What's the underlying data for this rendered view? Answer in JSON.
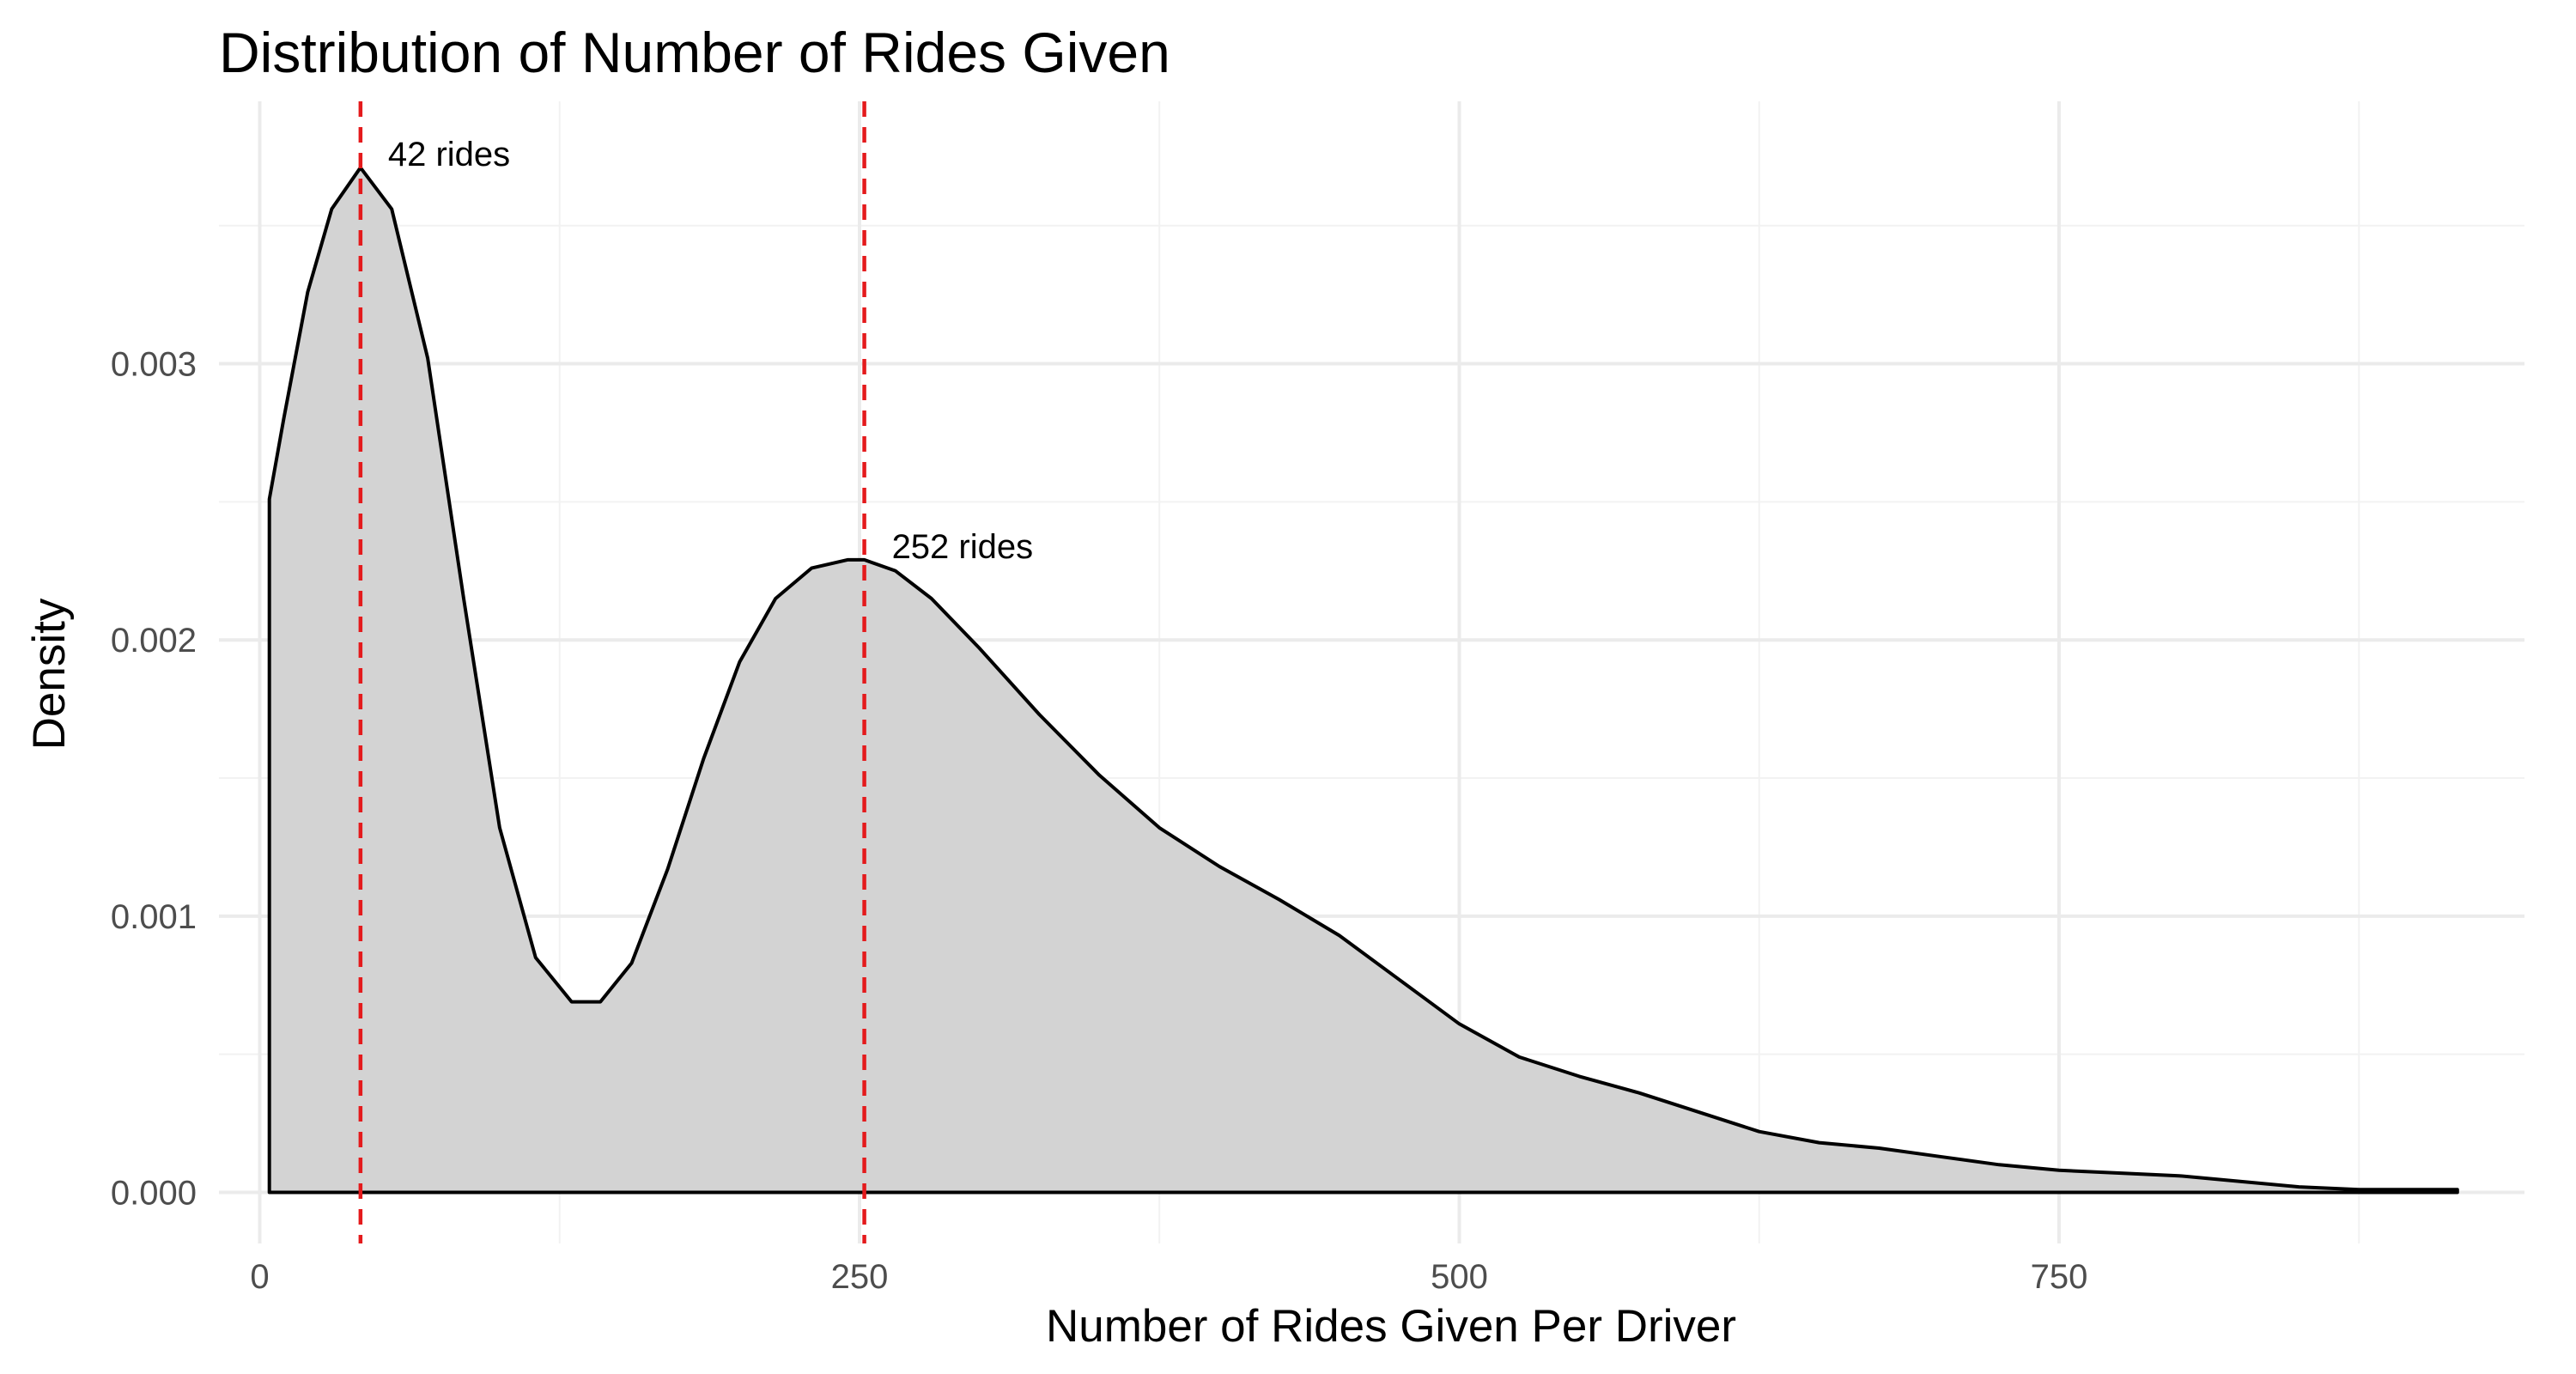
{
  "chart_data": {
    "type": "area",
    "title": "Distribution of Number of Rides Given",
    "xlabel": "Number of Rides Given Per Driver",
    "ylabel": "Density",
    "xlim": [
      -17,
      944
    ],
    "ylim": [
      -0.000185,
      0.00395
    ],
    "x_ticks": [
      {
        "value": 0,
        "label": "0"
      },
      {
        "value": 250,
        "label": "250"
      },
      {
        "value": 500,
        "label": "500"
      },
      {
        "value": 750,
        "label": "750"
      }
    ],
    "y_ticks": [
      {
        "value": 0.0,
        "label": "0.000"
      },
      {
        "value": 0.001,
        "label": "0.001"
      },
      {
        "value": 0.002,
        "label": "0.002"
      },
      {
        "value": 0.003,
        "label": "0.003"
      }
    ],
    "x_minor": [
      125,
      375,
      625,
      875
    ],
    "y_minor": [
      0.0005,
      0.0015,
      0.0025,
      0.0035
    ],
    "grid": true,
    "fill_color": "#d3d3d3",
    "line_color": "#000000",
    "series": [
      {
        "x": [
          4,
          10,
          20,
          30,
          42,
          55,
          70,
          85,
          100,
          115,
          130,
          142,
          155,
          170,
          185,
          200,
          215,
          230,
          245,
          252,
          265,
          280,
          300,
          325,
          350,
          375,
          400,
          425,
          450,
          475,
          500,
          525,
          550,
          575,
          600,
          625,
          650,
          675,
          700,
          725,
          750,
          775,
          800,
          825,
          850,
          875,
          900,
          916
        ],
        "y": [
          0.00251,
          0.0028,
          0.00326,
          0.00356,
          0.00371,
          0.00356,
          0.00302,
          0.00215,
          0.00132,
          0.00085,
          0.00069,
          0.00069,
          0.00083,
          0.00117,
          0.00157,
          0.00192,
          0.00215,
          0.00226,
          0.00229,
          0.00229,
          0.00225,
          0.00215,
          0.00197,
          0.00173,
          0.00151,
          0.00132,
          0.00118,
          0.00106,
          0.00093,
          0.00077,
          0.00061,
          0.00049,
          0.00042,
          0.00036,
          0.00029,
          0.00022,
          0.00018,
          0.00016,
          0.00013,
          0.0001,
          8e-05,
          7e-05,
          6e-05,
          4e-05,
          2e-05,
          1e-05,
          1e-05,
          1e-05
        ]
      }
    ],
    "annotations": [
      {
        "x": 42,
        "peak": 0.00371,
        "text": "42 rides",
        "line_color": "#e41a1c"
      },
      {
        "x": 252,
        "peak": 0.00229,
        "text": "252 rides",
        "line_color": "#e41a1c"
      }
    ]
  }
}
